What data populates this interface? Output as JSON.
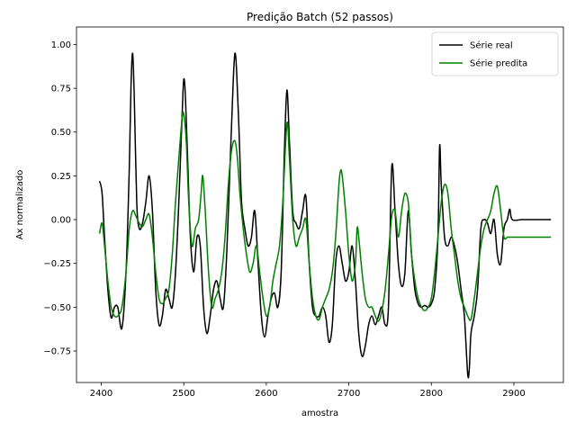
{
  "chart_data": {
    "type": "line",
    "title": "Predição Batch (52 passos)",
    "xlabel": "amostra",
    "ylabel": "Ax normalizado",
    "xlim": [
      2370,
      2960
    ],
    "ylim": [
      -0.93,
      1.1
    ],
    "xticks": [
      2400,
      2500,
      2600,
      2700,
      2800,
      2900
    ],
    "yticks": [
      -0.75,
      -0.5,
      -0.25,
      0.0,
      0.25,
      0.5,
      0.75,
      1.0
    ],
    "ytick_labels": [
      "−0.75",
      "−0.50",
      "−0.25",
      "0.00",
      "0.25",
      "0.50",
      "0.75",
      "1.00"
    ],
    "grid": false,
    "legend_position": "top-right",
    "series": [
      {
        "name": "Série real",
        "color": "#000000",
        "x": [
          2398,
          2401,
          2404,
          2408,
          2412,
          2416,
          2420,
          2425,
          2430,
          2434,
          2436,
          2438,
          2440,
          2443,
          2446,
          2450,
          2454,
          2458,
          2462,
          2466,
          2470,
          2474,
          2478,
          2482,
          2486,
          2490,
          2494,
          2498,
          2500,
          2502,
          2505,
          2508,
          2512,
          2516,
          2520,
          2524,
          2528,
          2532,
          2536,
          2540,
          2544,
          2548,
          2552,
          2556,
          2560,
          2562,
          2564,
          2567,
          2570,
          2574,
          2578,
          2582,
          2586,
          2590,
          2594,
          2598,
          2602,
          2606,
          2610,
          2614,
          2618,
          2622,
          2625,
          2628,
          2632,
          2636,
          2640,
          2644,
          2648,
          2652,
          2656,
          2660,
          2664,
          2668,
          2672,
          2676,
          2680,
          2684,
          2688,
          2692,
          2696,
          2700,
          2704,
          2708,
          2712,
          2716,
          2720,
          2724,
          2728,
          2732,
          2736,
          2740,
          2744,
          2748,
          2752,
          2756,
          2760,
          2764,
          2768,
          2772,
          2776,
          2780,
          2784,
          2788,
          2792,
          2796,
          2800,
          2804,
          2808,
          2810,
          2812,
          2816,
          2820,
          2824,
          2828,
          2832,
          2836,
          2840,
          2844,
          2846,
          2848,
          2852,
          2856,
          2860,
          2864,
          2868,
          2872,
          2876,
          2880,
          2884,
          2888,
          2892,
          2895,
          2898,
          2910,
          2925,
          2945
        ],
        "y": [
          0.22,
          0.15,
          -0.1,
          -0.4,
          -0.56,
          -0.5,
          -0.5,
          -0.62,
          -0.3,
          0.3,
          0.75,
          0.95,
          0.7,
          0.1,
          -0.05,
          -0.02,
          0.1,
          0.25,
          0.05,
          -0.4,
          -0.6,
          -0.55,
          -0.4,
          -0.45,
          -0.5,
          -0.3,
          0.1,
          0.6,
          0.8,
          0.7,
          0.3,
          -0.1,
          -0.3,
          -0.1,
          -0.15,
          -0.5,
          -0.65,
          -0.55,
          -0.4,
          -0.35,
          -0.45,
          -0.5,
          -0.2,
          0.3,
          0.8,
          0.95,
          0.85,
          0.5,
          0.1,
          -0.05,
          -0.15,
          -0.1,
          0.05,
          -0.25,
          -0.55,
          -0.67,
          -0.55,
          -0.45,
          -0.42,
          -0.5,
          -0.3,
          0.4,
          0.74,
          0.45,
          0.05,
          -0.02,
          -0.05,
          0.05,
          0.13,
          -0.25,
          -0.5,
          -0.55,
          -0.55,
          -0.5,
          -0.55,
          -0.7,
          -0.6,
          -0.25,
          -0.15,
          -0.25,
          -0.35,
          -0.3,
          -0.15,
          -0.35,
          -0.65,
          -0.78,
          -0.72,
          -0.6,
          -0.55,
          -0.6,
          -0.55,
          -0.5,
          -0.6,
          -0.5,
          0.3,
          0.05,
          -0.25,
          -0.38,
          -0.3,
          0.05,
          -0.2,
          -0.4,
          -0.48,
          -0.5,
          -0.49,
          -0.5,
          -0.48,
          -0.4,
          -0.1,
          0.42,
          0.2,
          -0.1,
          -0.15,
          -0.1,
          -0.15,
          -0.25,
          -0.4,
          -0.55,
          -0.88,
          -0.85,
          -0.65,
          -0.55,
          -0.4,
          -0.05,
          0.0,
          -0.02,
          -0.08,
          0.0,
          -0.2,
          -0.25,
          -0.05,
          0.0,
          0.06,
          0.0,
          0.0,
          0.0,
          0.0
        ]
      },
      {
        "name": "Série predita",
        "color": "#008000",
        "x": [
          2398,
          2401,
          2404,
          2408,
          2412,
          2416,
          2420,
          2425,
          2430,
          2434,
          2438,
          2442,
          2446,
          2450,
          2454,
          2458,
          2462,
          2466,
          2470,
          2474,
          2478,
          2482,
          2486,
          2490,
          2494,
          2498,
          2500,
          2503,
          2506,
          2510,
          2514,
          2518,
          2521,
          2523,
          2526,
          2530,
          2534,
          2538,
          2542,
          2546,
          2550,
          2554,
          2558,
          2562,
          2565,
          2568,
          2572,
          2576,
          2580,
          2584,
          2588,
          2592,
          2596,
          2600,
          2604,
          2608,
          2612,
          2616,
          2620,
          2625,
          2628,
          2632,
          2636,
          2640,
          2644,
          2648,
          2652,
          2656,
          2660,
          2664,
          2668,
          2672,
          2676,
          2680,
          2684,
          2688,
          2690,
          2692,
          2696,
          2700,
          2704,
          2708,
          2710,
          2712,
          2716,
          2720,
          2724,
          2728,
          2732,
          2736,
          2740,
          2744,
          2748,
          2752,
          2756,
          2760,
          2764,
          2768,
          2772,
          2774,
          2776,
          2780,
          2784,
          2788,
          2792,
          2796,
          2800,
          2804,
          2808,
          2812,
          2816,
          2820,
          2824,
          2828,
          2832,
          2836,
          2840,
          2844,
          2848,
          2852,
          2856,
          2860,
          2864,
          2868,
          2872,
          2876,
          2880,
          2884,
          2888,
          2892,
          2895,
          2898,
          2910,
          2925,
          2945
        ],
        "y": [
          -0.08,
          -0.02,
          -0.15,
          -0.35,
          -0.5,
          -0.55,
          -0.55,
          -0.5,
          -0.3,
          -0.05,
          0.05,
          0.02,
          -0.02,
          -0.04,
          0.0,
          0.03,
          -0.1,
          -0.3,
          -0.45,
          -0.48,
          -0.45,
          -0.4,
          -0.2,
          0.1,
          0.35,
          0.58,
          0.6,
          0.45,
          0.1,
          -0.15,
          -0.05,
          0.0,
          0.15,
          0.25,
          0.05,
          -0.3,
          -0.5,
          -0.45,
          -0.4,
          -0.3,
          -0.1,
          0.2,
          0.4,
          0.45,
          0.35,
          0.15,
          -0.05,
          -0.2,
          -0.3,
          -0.25,
          -0.15,
          -0.3,
          -0.45,
          -0.55,
          -0.5,
          -0.35,
          -0.25,
          -0.15,
          0.1,
          0.55,
          0.35,
          0.0,
          -0.15,
          -0.1,
          -0.05,
          0.0,
          -0.25,
          -0.45,
          -0.55,
          -0.57,
          -0.5,
          -0.45,
          -0.4,
          -0.3,
          -0.1,
          0.2,
          0.28,
          0.25,
          0.05,
          -0.2,
          -0.35,
          -0.25,
          -0.05,
          -0.1,
          -0.3,
          -0.45,
          -0.5,
          -0.5,
          -0.55,
          -0.58,
          -0.52,
          -0.4,
          -0.2,
          0.02,
          0.05,
          -0.1,
          0.05,
          0.15,
          0.1,
          -0.05,
          -0.2,
          -0.35,
          -0.45,
          -0.5,
          -0.52,
          -0.5,
          -0.45,
          -0.3,
          -0.1,
          0.1,
          0.2,
          0.15,
          -0.05,
          -0.2,
          -0.35,
          -0.45,
          -0.5,
          -0.55,
          -0.57,
          -0.45,
          -0.3,
          -0.15,
          -0.05,
          0.0,
          0.05,
          0.15,
          0.19,
          0.05,
          -0.1,
          -0.1,
          -0.1,
          -0.1,
          -0.1,
          -0.1,
          -0.1
        ]
      }
    ]
  }
}
